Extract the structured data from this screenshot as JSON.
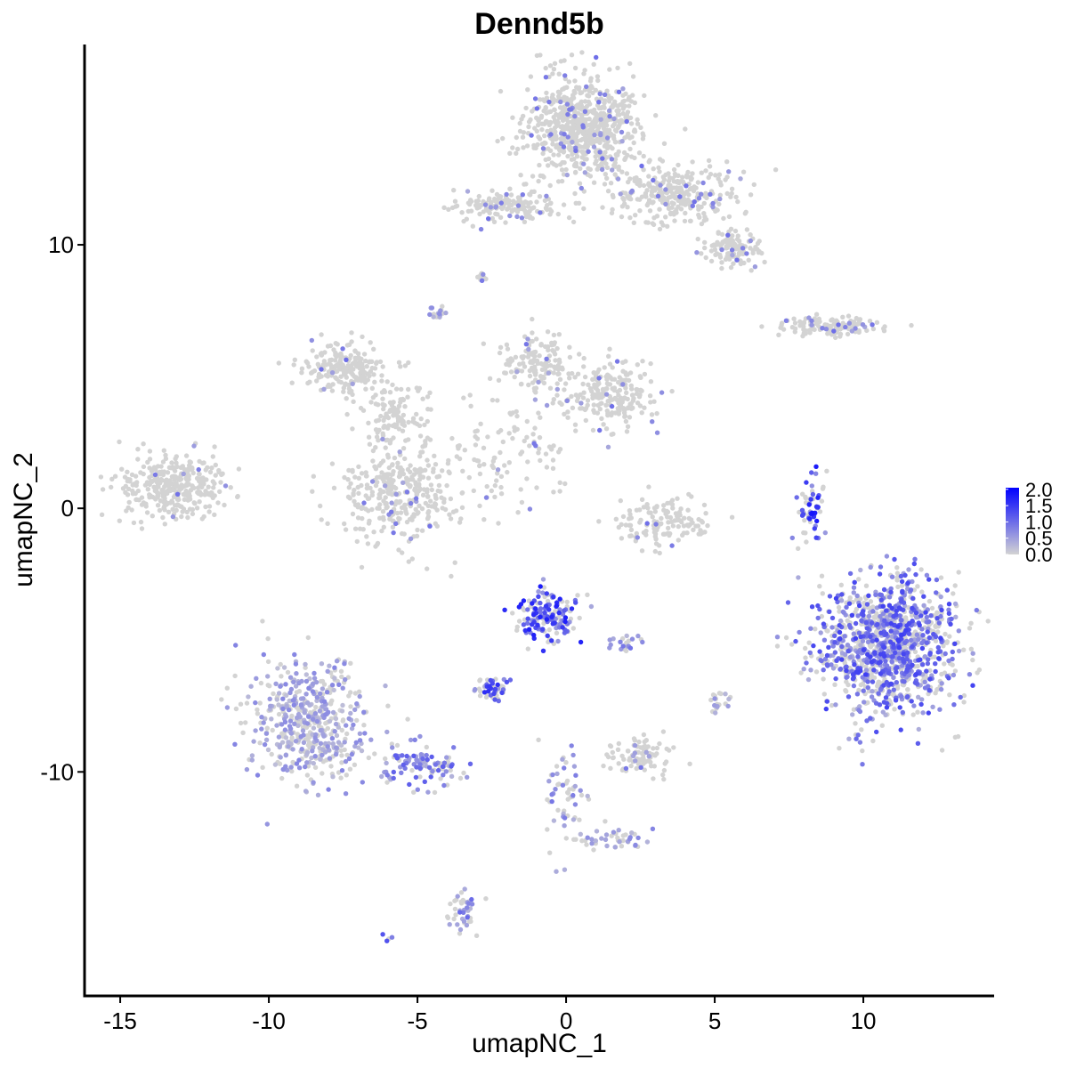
{
  "chart_data": {
    "type": "scatter",
    "title": "Dennd5b",
    "xlabel": "umapNC_1",
    "ylabel": "umapNC_2",
    "xlim": [
      -16.2,
      14.4
    ],
    "ylim": [
      -18.5,
      17.6
    ],
    "x_ticks": [
      -15,
      -10,
      -5,
      0,
      5,
      10
    ],
    "y_ticks": [
      -10,
      0,
      10
    ],
    "color_scale": {
      "low": "#d3d3d3",
      "high": "#0000ff",
      "min": 0.0,
      "max": 2.05,
      "legend_ticks": [
        "0.0",
        "0.5",
        "1.0",
        "1.5",
        "2.0"
      ]
    },
    "clusters": [
      {
        "center": [
          0.6,
          14.5
        ],
        "spread": [
          1.3,
          1.2
        ],
        "n": 700,
        "expression": 0.02
      },
      {
        "center": [
          3.8,
          12.0
        ],
        "spread": [
          1.4,
          0.8
        ],
        "n": 300,
        "expression": 0.03
      },
      {
        "center": [
          5.6,
          9.8
        ],
        "spread": [
          0.6,
          0.4
        ],
        "n": 120,
        "expression": 0.05
      },
      {
        "center": [
          -2.0,
          11.5
        ],
        "spread": [
          1.3,
          0.4
        ],
        "n": 160,
        "expression": 0.04
      },
      {
        "center": [
          8.8,
          6.9
        ],
        "spread": [
          1.0,
          0.25
        ],
        "n": 130,
        "expression": 0.05
      },
      {
        "center": [
          -13.2,
          0.8
        ],
        "spread": [
          1.2,
          0.8
        ],
        "n": 350,
        "expression": 0.01
      },
      {
        "center": [
          -7.5,
          5.3
        ],
        "spread": [
          0.9,
          0.6
        ],
        "n": 200,
        "expression": 0.01
      },
      {
        "center": [
          -5.6,
          0.5
        ],
        "spread": [
          1.4,
          1.2
        ],
        "n": 330,
        "expression": 0.02
      },
      {
        "center": [
          -5.8,
          3.6
        ],
        "spread": [
          0.8,
          0.8
        ],
        "n": 120,
        "expression": 0.01
      },
      {
        "center": [
          -1.0,
          5.5
        ],
        "spread": [
          0.8,
          0.8
        ],
        "n": 140,
        "expression": 0.02
      },
      {
        "center": [
          1.6,
          4.3
        ],
        "spread": [
          1.0,
          0.8
        ],
        "n": 220,
        "expression": 0.02
      },
      {
        "center": [
          -2.0,
          2.0
        ],
        "spread": [
          1.5,
          1.5
        ],
        "n": 100,
        "expression": 0.02
      },
      {
        "center": [
          3.3,
          -0.5
        ],
        "spread": [
          1.0,
          0.6
        ],
        "n": 130,
        "expression": 0.01
      },
      {
        "center": [
          8.2,
          -0.1
        ],
        "spread": [
          0.3,
          0.9
        ],
        "n": 60,
        "expression": 1.1
      },
      {
        "center": [
          10.8,
          -5.2
        ],
        "spread": [
          1.6,
          1.7
        ],
        "n": 1150,
        "expression": 0.85
      },
      {
        "center": [
          -0.6,
          -4.1
        ],
        "spread": [
          0.7,
          0.7
        ],
        "n": 160,
        "expression": 1.05
      },
      {
        "center": [
          -2.5,
          -6.9
        ],
        "spread": [
          0.4,
          0.3
        ],
        "n": 50,
        "expression": 0.95
      },
      {
        "center": [
          -8.6,
          -8.0
        ],
        "spread": [
          1.3,
          1.6
        ],
        "n": 500,
        "expression": 0.45
      },
      {
        "center": [
          -5.0,
          -9.8
        ],
        "spread": [
          1.0,
          0.5
        ],
        "n": 110,
        "expression": 0.7
      },
      {
        "center": [
          2.5,
          -9.4
        ],
        "spread": [
          0.8,
          0.5
        ],
        "n": 90,
        "expression": 0.03
      },
      {
        "center": [
          0.0,
          -11.0
        ],
        "spread": [
          0.5,
          1.2
        ],
        "n": 60,
        "expression": 0.55
      },
      {
        "center": [
          1.7,
          -12.6
        ],
        "spread": [
          0.8,
          0.3
        ],
        "n": 40,
        "expression": 0.45
      },
      {
        "center": [
          -3.4,
          -15.3
        ],
        "spread": [
          0.3,
          0.6
        ],
        "n": 45,
        "expression": 0.6
      },
      {
        "center": [
          5.1,
          -7.3
        ],
        "spread": [
          0.2,
          0.3
        ],
        "n": 20,
        "expression": 0.4
      },
      {
        "center": [
          -4.3,
          7.4
        ],
        "spread": [
          0.2,
          0.2
        ],
        "n": 15,
        "expression": 0.4
      },
      {
        "center": [
          -2.8,
          8.8
        ],
        "spread": [
          0.2,
          0.1
        ],
        "n": 10,
        "expression": 0.05
      },
      {
        "center": [
          2.0,
          -5.1
        ],
        "spread": [
          0.5,
          0.2
        ],
        "n": 20,
        "expression": 0.6
      },
      {
        "center": [
          -6.0,
          -16.2
        ],
        "spread": [
          0.1,
          0.1
        ],
        "n": 4,
        "expression": 0.8
      }
    ]
  }
}
